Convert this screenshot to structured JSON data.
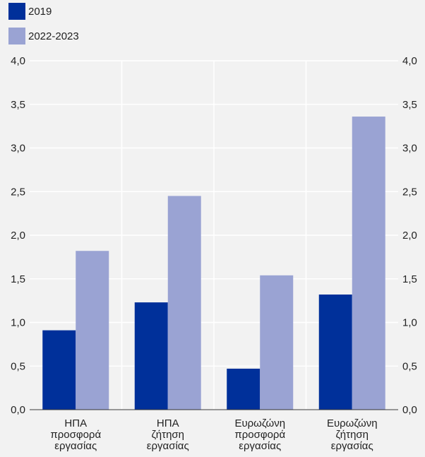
{
  "chart_data": {
    "type": "bar",
    "categories": [
      [
        "ΗΠΑ",
        "προσφορά",
        "εργασίας"
      ],
      [
        "ΗΠΑ",
        "ζήτηση",
        "εργασίας"
      ],
      [
        "Ευρωζώνη",
        "προσφορά",
        "εργασίας"
      ],
      [
        "Ευρωζώνη",
        "ζήτηση",
        "εργασίας"
      ]
    ],
    "series": [
      {
        "name": "2019",
        "values": [
          0.91,
          1.23,
          0.47,
          1.32
        ],
        "color": "#00309a"
      },
      {
        "name": "2022-2023",
        "values": [
          1.82,
          2.45,
          1.54,
          3.36
        ],
        "color": "#9aa3d3"
      }
    ],
    "y_ticks": [
      "0,0",
      "0,5",
      "1,0",
      "1,5",
      "2,0",
      "2,5",
      "3,0",
      "3,5",
      "4,0"
    ],
    "ylim": [
      0,
      4
    ],
    "grid": true,
    "legend_position": "top-left",
    "title": "",
    "xlabel": "",
    "ylabel": ""
  }
}
